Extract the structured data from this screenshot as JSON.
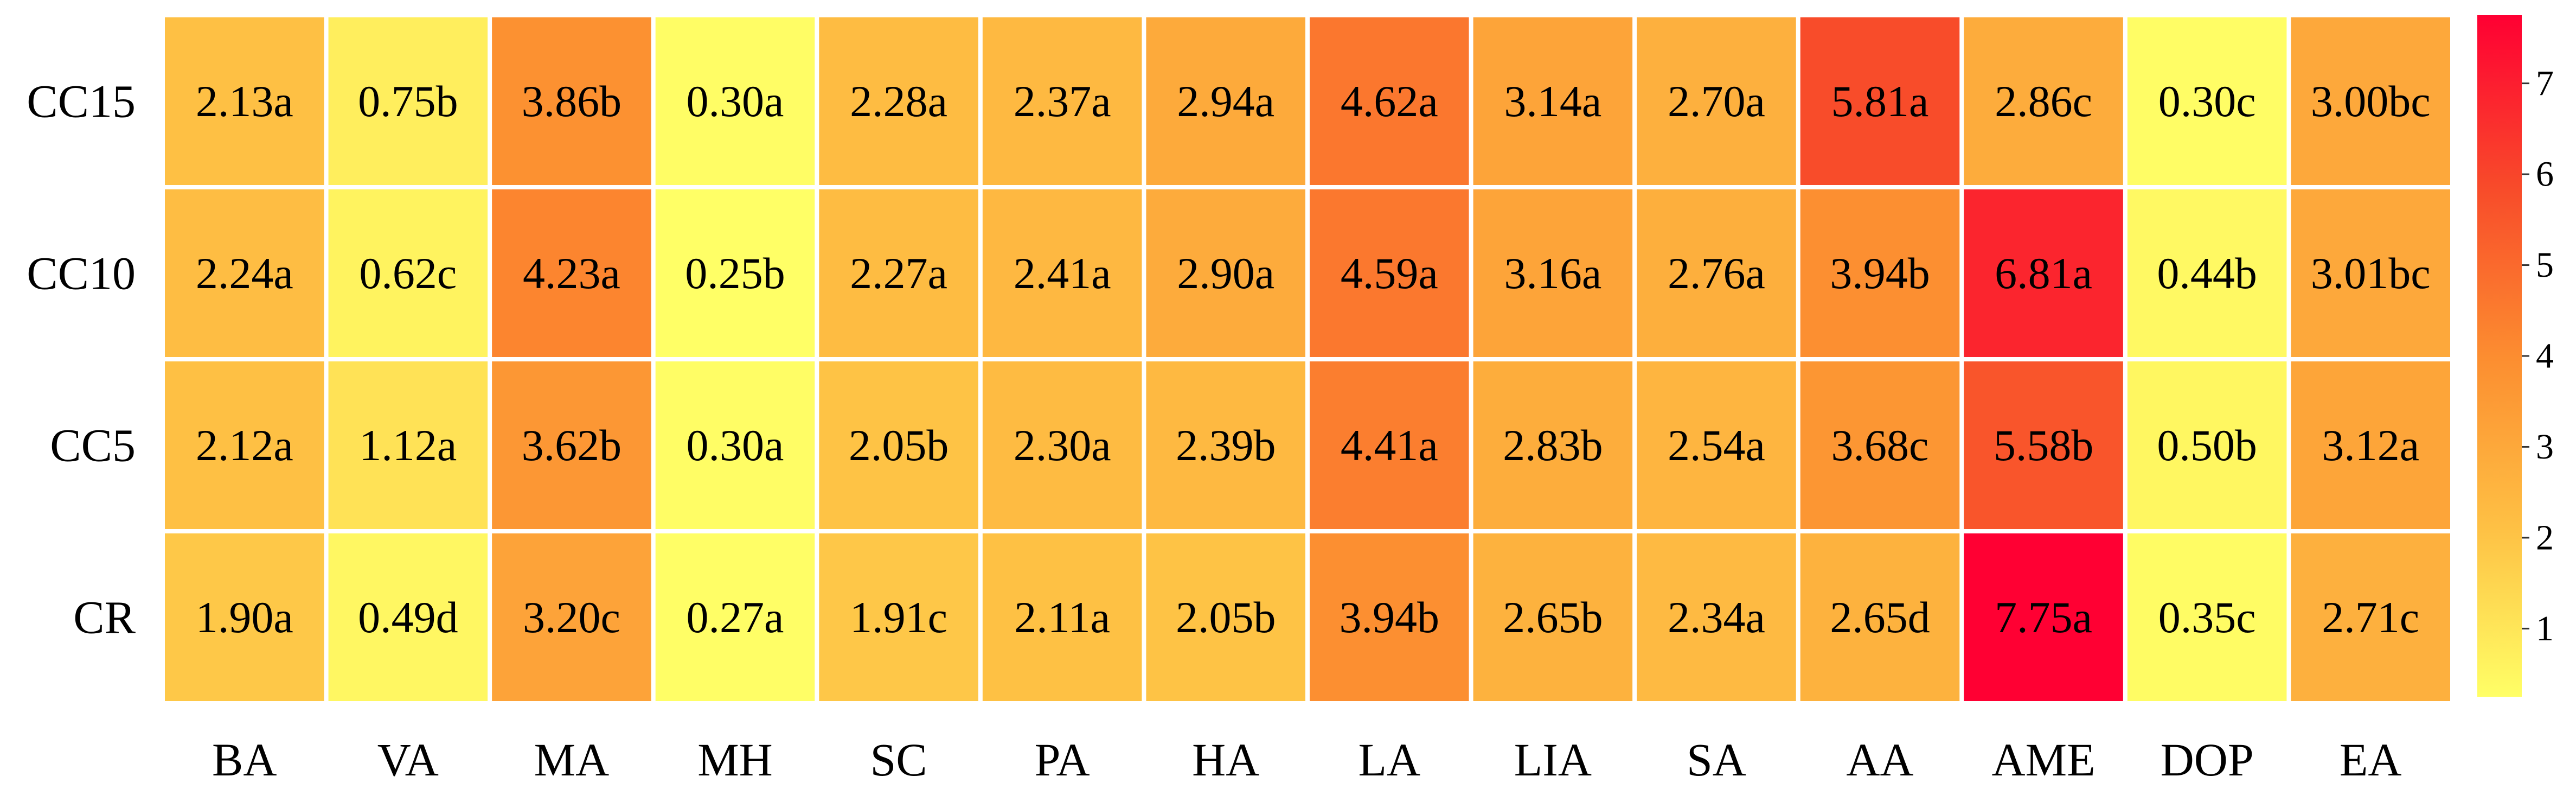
{
  "chart_data": {
    "type": "heatmap",
    "title": "",
    "xlabel": "",
    "ylabel": "",
    "columns": [
      "BA",
      "VA",
      "MA",
      "MH",
      "SC",
      "PA",
      "HA",
      "LA",
      "LIA",
      "SA",
      "AA",
      "AME",
      "DOP",
      "EA"
    ],
    "rows": [
      "CC15",
      "CC10",
      "CC5",
      "CR"
    ],
    "values": [
      [
        2.13,
        0.75,
        3.86,
        0.3,
        2.28,
        2.37,
        2.94,
        4.62,
        3.14,
        2.7,
        5.81,
        2.86,
        0.3,
        3.0
      ],
      [
        2.24,
        0.62,
        4.23,
        0.25,
        2.27,
        2.41,
        2.9,
        4.59,
        3.16,
        2.76,
        3.94,
        6.81,
        0.44,
        3.01
      ],
      [
        2.12,
        1.12,
        3.62,
        0.3,
        2.05,
        2.3,
        2.39,
        4.41,
        2.83,
        2.54,
        3.68,
        5.58,
        0.5,
        3.12
      ],
      [
        1.9,
        0.49,
        3.2,
        0.27,
        1.91,
        2.11,
        2.05,
        3.94,
        2.65,
        2.34,
        2.65,
        7.75,
        0.35,
        2.71
      ]
    ],
    "labels": [
      [
        "2.13a",
        "0.75b",
        "3.86b",
        "0.30a",
        "2.28a",
        "2.37a",
        "2.94a",
        "4.62a",
        "3.14a",
        "2.70a",
        "5.81a",
        "2.86c",
        "0.30c",
        "3.00bc"
      ],
      [
        "2.24a",
        "0.62c",
        "4.23a",
        "0.25b",
        "2.27a",
        "2.41a",
        "2.90a",
        "4.59a",
        "3.16a",
        "2.76a",
        "3.94b",
        "6.81a",
        "0.44b",
        "3.01bc"
      ],
      [
        "2.12a",
        "1.12a",
        "3.62b",
        "0.30a",
        "2.05b",
        "2.30a",
        "2.39b",
        "4.41a",
        "2.83b",
        "2.54a",
        "3.68c",
        "5.58b",
        "0.50b",
        "3.12a"
      ],
      [
        "1.90a",
        "0.49d",
        "3.20c",
        "0.27a",
        "1.91c",
        "2.11a",
        "2.05b",
        "3.94b",
        "2.65b",
        "2.34a",
        "2.65d",
        "7.75a",
        "0.35c",
        "2.71c"
      ]
    ],
    "color_scale": {
      "min": 0.25,
      "max": 7.75,
      "stops": [
        "#ffff66",
        "#fec044",
        "#fc8d30",
        "#f84a2a",
        "#ff0033"
      ],
      "ticks": [
        1,
        2,
        3,
        4,
        5,
        6,
        7
      ]
    },
    "legend": "right"
  }
}
